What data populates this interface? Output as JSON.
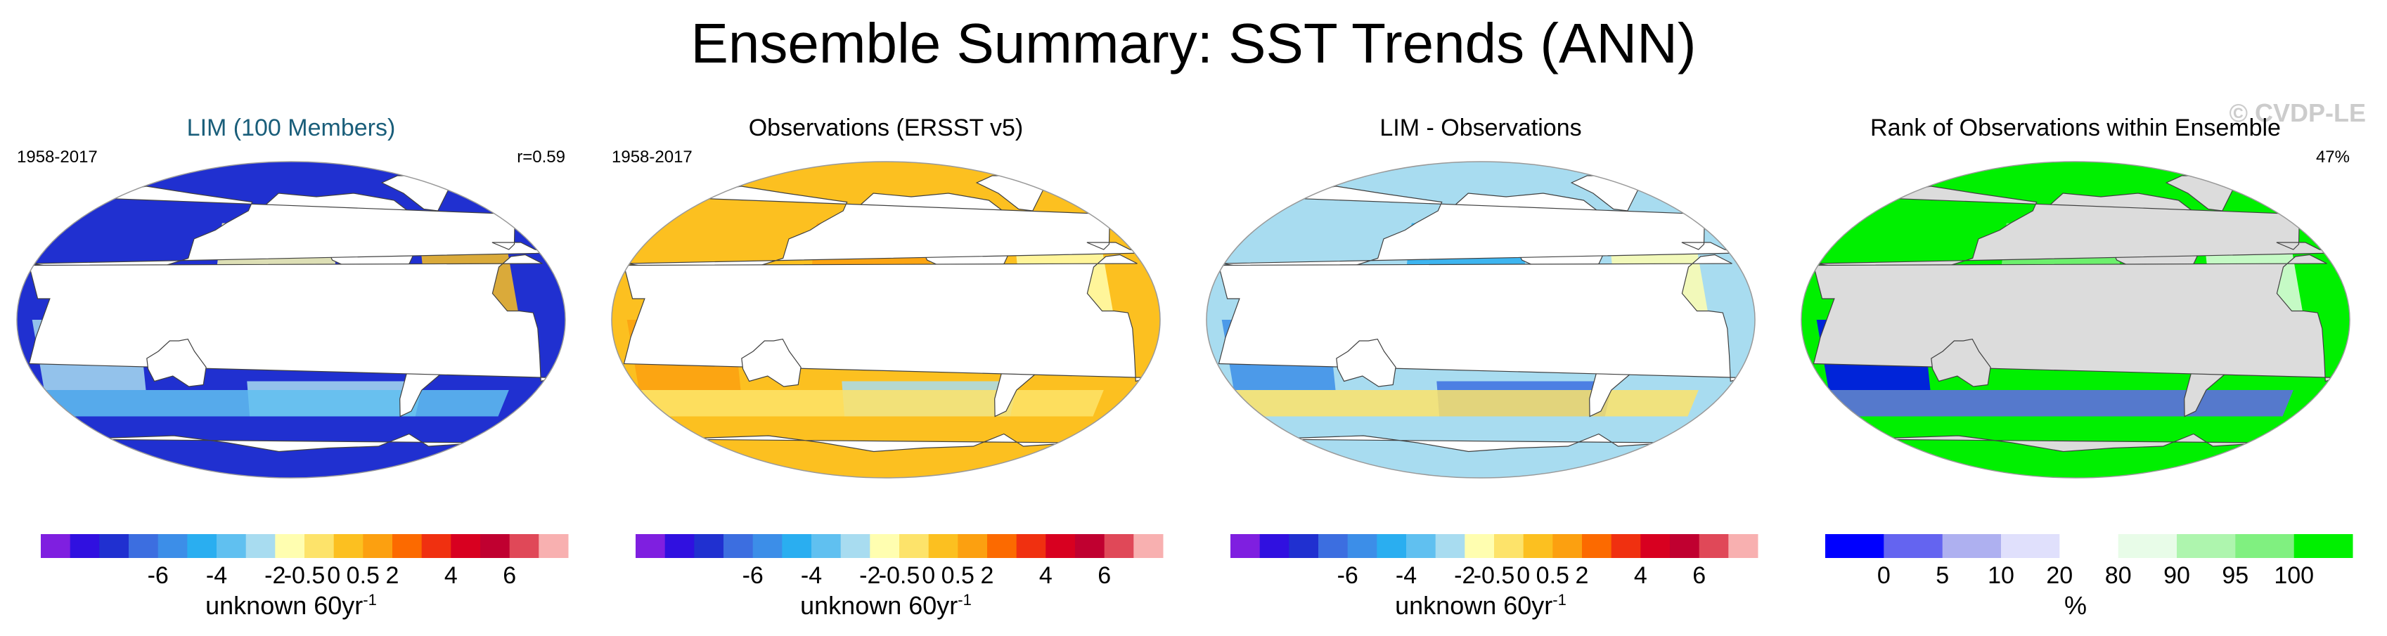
{
  "title": "Ensemble Summary: SST Trends (ANN)",
  "watermark": "© CVDP-LE",
  "colors": {
    "trend_scale": [
      "#7f1fe0",
      "#3010e0",
      "#2030d0",
      "#3c6ee0",
      "#3c8ee8",
      "#2aaef0",
      "#60c0f0",
      "#a8dcf0",
      "#fffeb0",
      "#fde36a",
      "#fcc020",
      "#fca010",
      "#fc6a00",
      "#f03010",
      "#d80020",
      "#c00030",
      "#e04858",
      "#f8b0b0"
    ],
    "rank_scale": [
      "#0000ff",
      "#6464f0",
      "#aeb0f0",
      "#e0e0fc",
      "#ffffff",
      "#e8fce8",
      "#aef5ae",
      "#80f080",
      "#00f000"
    ],
    "continent": "#ffffff",
    "rank_land": "#dcdcdc",
    "coastline": "#404040"
  },
  "panels": [
    {
      "title": "LIM (100 Members)",
      "title_color": "#1a5e7a",
      "period": "1958-2017",
      "stat": "r=0.59",
      "field_palette": "warm",
      "colorbar_ticks": [
        "-6",
        "-4",
        "-2",
        "-0.5",
        "0",
        "0.5",
        "2",
        "4",
        "6"
      ],
      "colorbar_label": "unknown 60yr",
      "colorbar_label_exp": "-1"
    },
    {
      "title": "Observations (ERSST v5)",
      "title_color": "#000000",
      "period": "1958-2017",
      "stat": "",
      "field_palette": "warm-strong",
      "colorbar_ticks": [
        "-6",
        "-4",
        "-2",
        "-0.5",
        "0",
        "0.5",
        "2",
        "4",
        "6"
      ],
      "colorbar_label": "unknown 60yr",
      "colorbar_label_exp": "-1"
    },
    {
      "title": "LIM - Observations",
      "title_color": "#000000",
      "period": "",
      "stat": "",
      "field_palette": "cool",
      "colorbar_ticks": [
        "-6",
        "-4",
        "-2",
        "-0.5",
        "0",
        "0.5",
        "2",
        "4",
        "6"
      ],
      "colorbar_label": "unknown 60yr",
      "colorbar_label_exp": "-1"
    },
    {
      "title": "Rank of Observations within Ensemble",
      "title_color": "#000000",
      "period": "",
      "stat": "47%",
      "field_palette": "rank",
      "colorbar_ticks": [
        "0",
        "5",
        "10",
        "20",
        "80",
        "90",
        "95",
        "100"
      ],
      "colorbar_label": "%",
      "colorbar_label_exp": ""
    }
  ],
  "chart_data": {
    "type": "heatmap",
    "title": "Ensemble Summary: SST Trends (ANN)",
    "projection": "Robinson (global, Pacific-centered)",
    "maps": [
      {
        "name": "LIM (100 Members)",
        "period": "1958-2017",
        "pattern_correlation": 0.59,
        "units": "unknown 60yr-1",
        "dominant_range": [
          0,
          2
        ]
      },
      {
        "name": "Observations (ERSST v5)",
        "period": "1958-2017",
        "units": "unknown 60yr-1",
        "dominant_range": [
          0.5,
          2
        ]
      },
      {
        "name": "LIM - Observations",
        "units": "unknown 60yr-1",
        "dominant_range": [
          -2,
          0
        ]
      },
      {
        "name": "Rank of Observations within Ensemble",
        "global_value_percent": 47,
        "units": "%"
      }
    ],
    "colorbar_trend": {
      "ticks": [
        -6,
        -4,
        -2,
        -0.5,
        0,
        0.5,
        2,
        4,
        6
      ]
    },
    "colorbar_rank": {
      "ticks": [
        0,
        5,
        10,
        20,
        80,
        90,
        95,
        100
      ]
    }
  }
}
